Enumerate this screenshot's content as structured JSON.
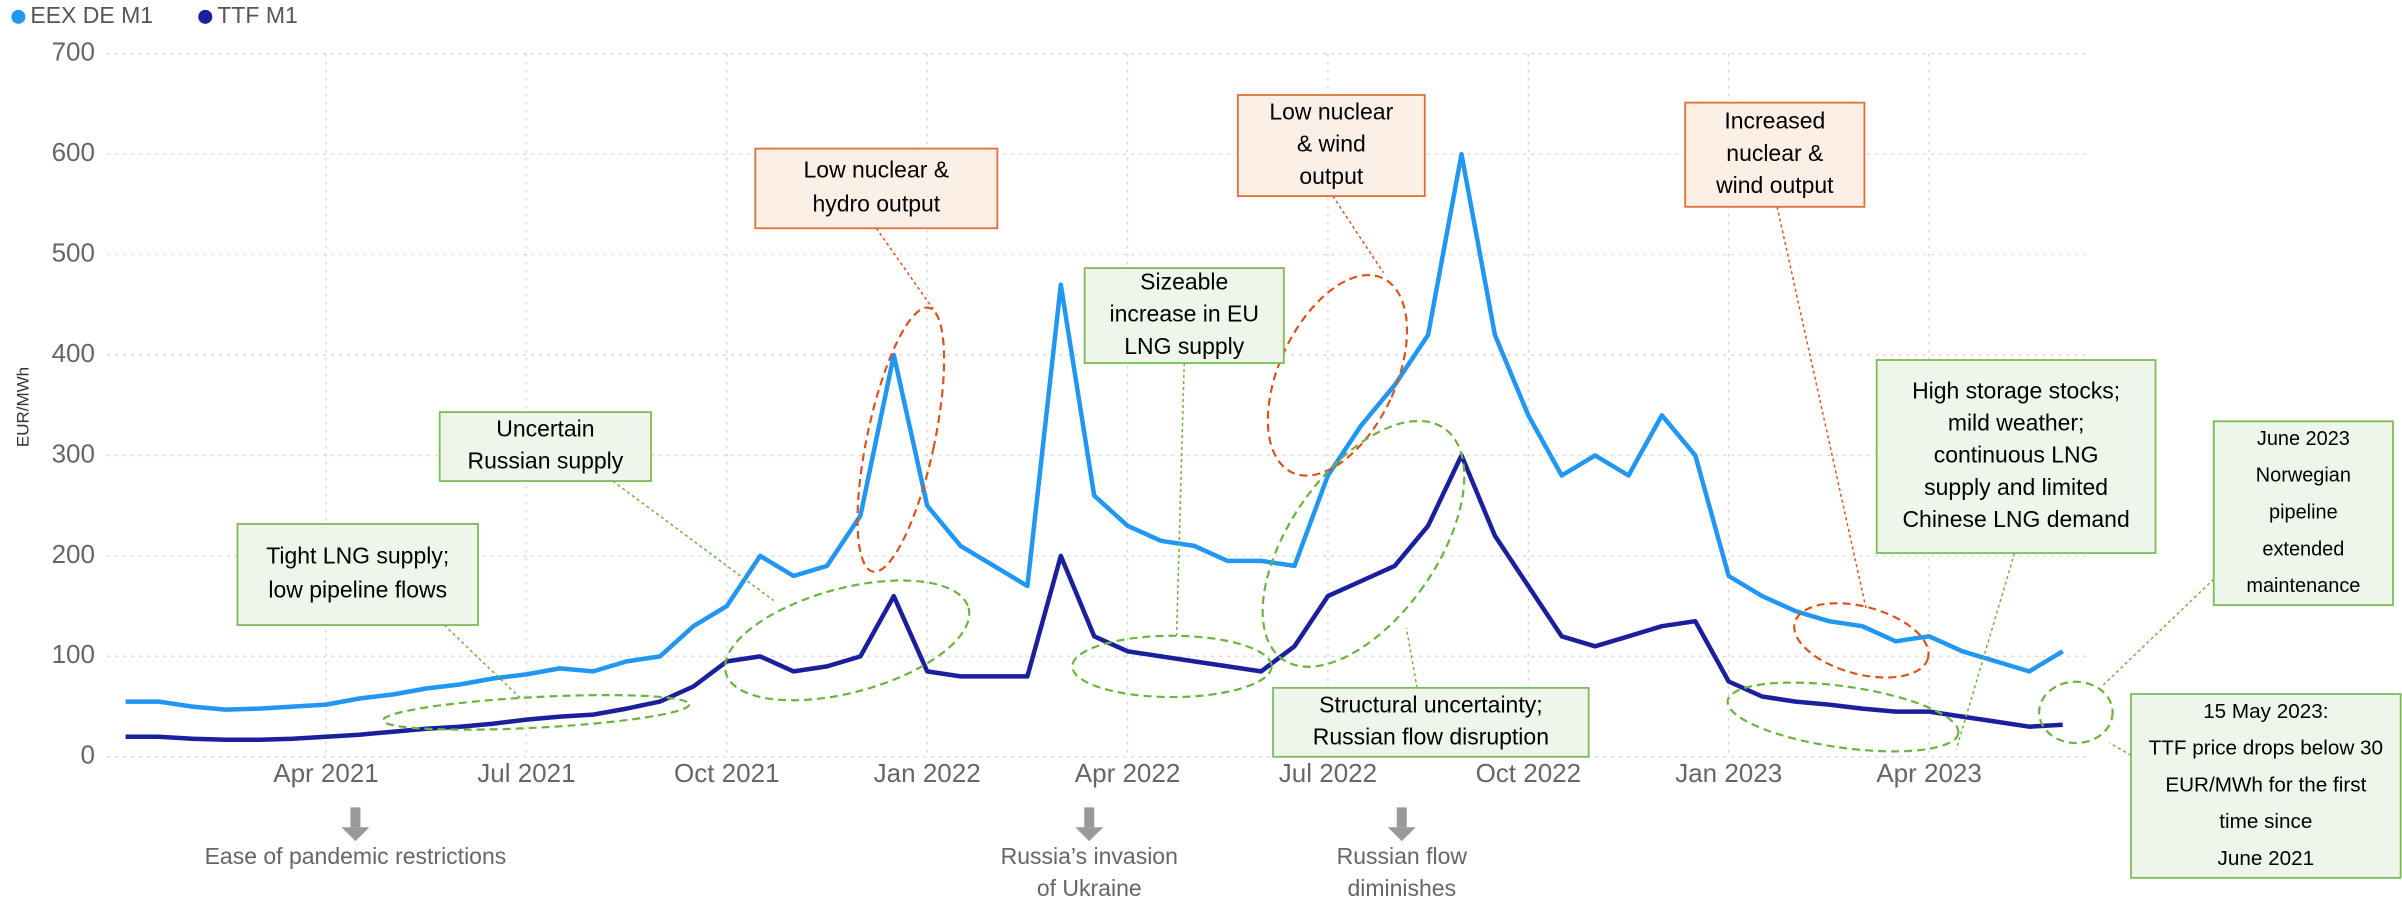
{
  "chart_data": {
    "type": "line",
    "y_label": "EUR/MWh",
    "categories": [
      null,
      null,
      null,
      null,
      null,
      null,
      "Apr 2021",
      null,
      null,
      null,
      null,
      null,
      "Jul 2021",
      null,
      null,
      null,
      null,
      null,
      "Oct 2021",
      null,
      null,
      null,
      null,
      null,
      "Jan 2022",
      null,
      null,
      null,
      null,
      null,
      "Apr 2022",
      null,
      null,
      null,
      null,
      null,
      "Jul 2022",
      null,
      null,
      null,
      null,
      null,
      "Oct 2022",
      null,
      null,
      null,
      null,
      null,
      "Jan 2023",
      null,
      null,
      null,
      null,
      null,
      "Apr 2023",
      null,
      null,
      null,
      null
    ],
    "series": [
      {
        "name": "EEX DE M1",
        "color": "#2196f3",
        "values": [
          55,
          55,
          50,
          47,
          48,
          50,
          52,
          58,
          62,
          68,
          72,
          78,
          82,
          88,
          85,
          95,
          100,
          130,
          150,
          200,
          180,
          190,
          240,
          400,
          250,
          210,
          190,
          170,
          470,
          260,
          230,
          215,
          210,
          195,
          195,
          190,
          280,
          330,
          370,
          420,
          600,
          420,
          340,
          280,
          300,
          280,
          340,
          300,
          180,
          160,
          145,
          135,
          130,
          115,
          120,
          105,
          95,
          85,
          105
        ]
      },
      {
        "name": "TTF M1",
        "color": "#1a1f9c",
        "values": [
          20,
          20,
          18,
          17,
          17,
          18,
          20,
          22,
          25,
          28,
          30,
          33,
          37,
          40,
          42,
          48,
          55,
          70,
          95,
          100,
          85,
          90,
          100,
          160,
          85,
          80,
          80,
          80,
          200,
          120,
          105,
          100,
          95,
          90,
          85,
          110,
          160,
          175,
          190,
          230,
          300,
          220,
          170,
          120,
          110,
          120,
          130,
          135,
          75,
          60,
          55,
          52,
          48,
          45,
          45,
          40,
          35,
          30,
          32
        ]
      }
    ],
    "ylim": [
      0,
      700
    ],
    "yticks": [
      0,
      100,
      200,
      300,
      400,
      500,
      600,
      700
    ],
    "grid": true,
    "legend": "top-left",
    "annotations": [
      {
        "lines": [
          "Tight LNG supply;",
          "low pipeline flows"
        ],
        "color": "#7dbb5a"
      },
      {
        "lines": [
          "Uncertain",
          "Russian supply"
        ],
        "color": "#7dbb5a"
      },
      {
        "lines": [
          "Low nuclear &",
          "hydro output"
        ],
        "color": "#e0703a"
      },
      {
        "lines": [
          "Sizeable",
          "increase in EU",
          "LNG supply"
        ],
        "color": "#7dbb5a"
      },
      {
        "lines": [
          "Low nuclear",
          "& wind",
          "output"
        ],
        "color": "#e0703a"
      },
      {
        "lines": [
          "Structural uncertainty;",
          "Russian flow disruption"
        ],
        "color": "#7dbb5a"
      },
      {
        "lines": [
          "Increased",
          "nuclear &",
          "wind output"
        ],
        "color": "#e0703a"
      },
      {
        "lines": [
          "High storage stocks;",
          "mild weather;",
          "continuous LNG",
          "supply and limited",
          "Chinese LNG demand"
        ],
        "color": "#7dbb5a"
      },
      {
        "lines": [
          "June 2023",
          "Norwegian",
          "pipeline",
          "extended",
          "maintenance"
        ],
        "color": "#7dbb5a"
      },
      {
        "lines": [
          "15 May 2023:",
          "TTF price drops below 30",
          "EUR/MWh for the first",
          "time since",
          "June 2021"
        ],
        "color": "#7dbb5a"
      }
    ],
    "events": [
      {
        "lines": [
          "Ease of pandemic restrictions"
        ]
      },
      {
        "lines": [
          "Russia’s invasion",
          "of Ukraine"
        ]
      },
      {
        "lines": [
          "Russian flow",
          "diminishes"
        ]
      }
    ]
  }
}
